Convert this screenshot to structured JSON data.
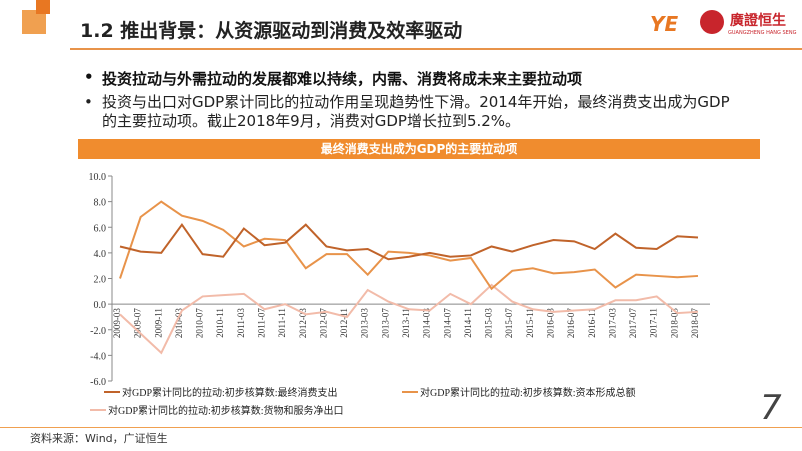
{
  "header": {
    "title": "1.2 推出背景：从资源驱动到消费及效率驱动",
    "logo_text": "廣證恒生",
    "logo_subtext": "GUANGZHENG HANG SENG"
  },
  "bullets": [
    "投资拉动与外需拉动的发展都难以持续，内需、消费将成未来主要拉动项",
    "投资与出口对GDP累计同比的拉动作用呈现趋势性下滑。2014年开始，最终消费支出成为GDP的主要拉动项。截止2018年9月，消费对GDP增长拉到5.2%。"
  ],
  "chart_data": {
    "type": "line",
    "title": "最终消费支出成为GDP的主要拉动项",
    "categories": [
      "2009-03",
      "2009-07",
      "2009-11",
      "2010-03",
      "2010-07",
      "2010-11",
      "2011-03",
      "2011-07",
      "2011-11",
      "2012-03",
      "2012-07",
      "2012-11",
      "2013-03",
      "2013-07",
      "2013-11",
      "2014-03",
      "2014-07",
      "2014-11",
      "2015-03",
      "2015-07",
      "2015-11",
      "2016-03",
      "2016-07",
      "2016-11",
      "2017-03",
      "2017-07",
      "2017-11",
      "2018-03",
      "2018-07"
    ],
    "series": [
      {
        "name": "对GDP累计同比的拉动:初步核算数:最终消费支出",
        "color": "#c0632a",
        "values": [
          4.5,
          4.1,
          4.0,
          6.2,
          3.9,
          3.7,
          5.9,
          4.6,
          4.8,
          6.2,
          4.5,
          4.2,
          4.3,
          3.5,
          3.7,
          4.0,
          3.7,
          3.8,
          4.5,
          4.1,
          4.6,
          5.0,
          4.9,
          4.3,
          5.5,
          4.4,
          4.3,
          5.3,
          5.2
        ]
      },
      {
        "name": "对GDP累计同比的拉动:初步核算数:资本形成总额",
        "color": "#e8934a",
        "values": [
          2.0,
          6.8,
          8.0,
          6.9,
          6.5,
          5.8,
          4.5,
          5.1,
          5.0,
          2.8,
          3.9,
          3.9,
          2.3,
          4.1,
          4.0,
          3.8,
          3.4,
          3.6,
          1.2,
          2.6,
          2.8,
          2.4,
          2.5,
          2.7,
          1.3,
          2.3,
          2.2,
          2.1,
          2.2
        ]
      },
      {
        "name": "对GDP累计同比的拉动:初步核算数:货物和服务净出口",
        "color": "#f2bba9",
        "values": [
          -0.8,
          -2.3,
          -3.8,
          -0.5,
          0.6,
          0.7,
          0.8,
          -0.4,
          0.0,
          -0.8,
          -0.6,
          -1.0,
          1.1,
          0.2,
          -0.4,
          -0.5,
          0.8,
          0.0,
          1.5,
          0.2,
          -0.4,
          -0.6,
          -0.5,
          -0.4,
          0.3,
          0.3,
          0.6,
          -0.7,
          -0.6
        ]
      }
    ],
    "ylim": [
      -6,
      10
    ],
    "yticks": [
      {
        "value": -6,
        "label": "-6.0"
      },
      {
        "value": -4,
        "label": "-4.0"
      },
      {
        "value": -2,
        "label": "-2.0"
      },
      {
        "value": 0,
        "label": "0.0"
      },
      {
        "value": 2,
        "label": "2.0"
      },
      {
        "value": 4,
        "label": "4.0"
      },
      {
        "value": 6,
        "label": "6.0"
      },
      {
        "value": 8,
        "label": "8.0"
      },
      {
        "value": 10,
        "label": "10.0"
      }
    ],
    "grid": false
  },
  "source": "资料来源：Wind，广证恒生",
  "page_number": "7"
}
